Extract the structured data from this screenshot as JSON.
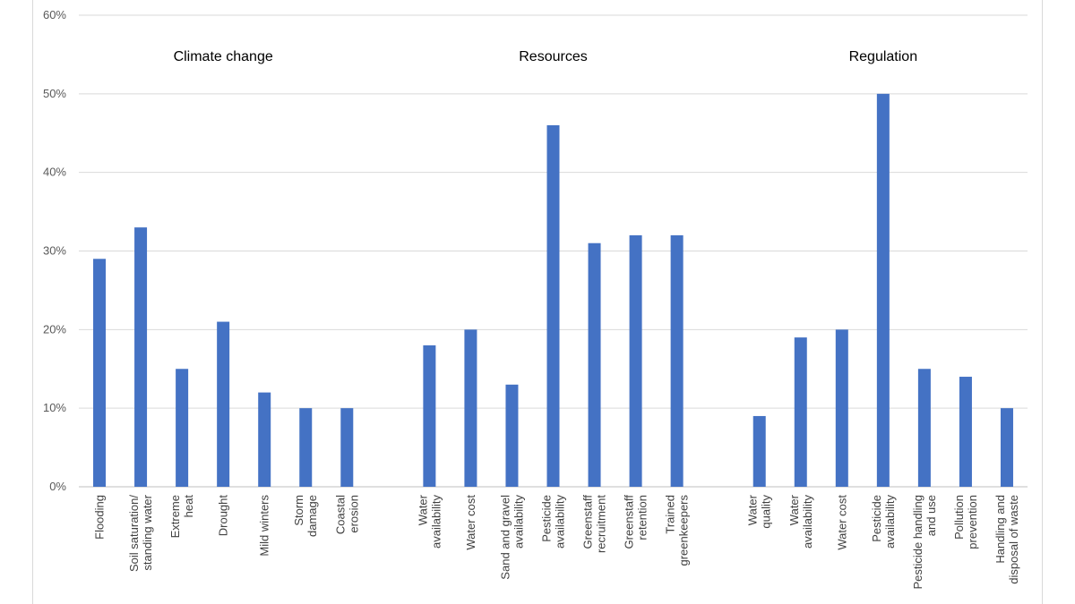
{
  "chart_data": {
    "type": "bar",
    "ylim": [
      0,
      0.6
    ],
    "yticks": [
      0,
      0.1,
      0.2,
      0.3,
      0.4,
      0.5,
      0.6
    ],
    "ytick_labels": [
      "0%",
      "10%",
      "20%",
      "30%",
      "40%",
      "50%",
      "60%"
    ],
    "grid": true,
    "bar_color": "#4472C4",
    "groups": [
      {
        "title": "Climate change",
        "categories": [
          [
            "Flooding"
          ],
          [
            "Soil saturation/",
            "standing water"
          ],
          [
            "Extreme",
            "heat"
          ],
          [
            "Drought"
          ],
          [
            "Mild winters"
          ],
          [
            "Storm",
            "damage"
          ],
          [
            "Coastal",
            "erosion"
          ]
        ],
        "values": [
          0.29,
          0.33,
          0.15,
          0.21,
          0.12,
          0.1,
          0.1
        ]
      },
      {
        "title": "Resources",
        "categories": [
          [
            "Water",
            "availability"
          ],
          [
            "Water cost"
          ],
          [
            "Sand and gravel",
            "availability"
          ],
          [
            "Pesticide",
            "availability"
          ],
          [
            "Greenstaff",
            "recruitment"
          ],
          [
            "Greenstaff",
            "retention"
          ],
          [
            "Trained",
            "greenkeepers"
          ]
        ],
        "values": [
          0.18,
          0.2,
          0.13,
          0.46,
          0.31,
          0.32,
          0.32
        ]
      },
      {
        "title": "Regulation",
        "categories": [
          [
            "Water",
            "quality"
          ],
          [
            "Water",
            "availability"
          ],
          [
            "Water cost"
          ],
          [
            "Pesticide",
            "availability"
          ],
          [
            "Pesticide handling",
            "and use"
          ],
          [
            "Pollution",
            "prevention"
          ],
          [
            "Handling and",
            "disposal of waste"
          ]
        ],
        "values": [
          0.09,
          0.19,
          0.2,
          0.5,
          0.15,
          0.14,
          0.1
        ]
      }
    ]
  }
}
